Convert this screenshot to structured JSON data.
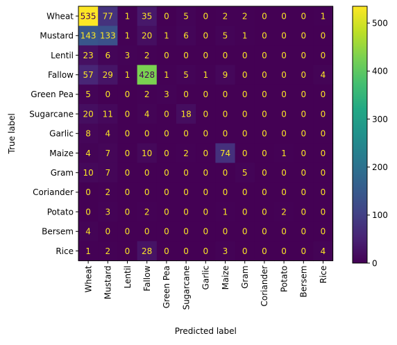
{
  "chart_data": {
    "type": "heatmap",
    "title": "",
    "xlabel": "Predicted label",
    "ylabel": "True label",
    "categories": [
      "Wheat",
      "Mustard",
      "Lentil",
      "Fallow",
      "Green Pea",
      "Sugarcane",
      "Garlic",
      "Maize",
      "Gram",
      "Coriander",
      "Potato",
      "Bersem",
      "Rice"
    ],
    "matrix": [
      [
        535,
        77,
        1,
        35,
        0,
        5,
        0,
        2,
        2,
        0,
        0,
        0,
        1
      ],
      [
        143,
        133,
        1,
        20,
        1,
        6,
        0,
        5,
        1,
        0,
        0,
        0,
        0
      ],
      [
        23,
        6,
        3,
        2,
        0,
        0,
        0,
        0,
        0,
        0,
        0,
        0,
        0
      ],
      [
        57,
        29,
        1,
        428,
        1,
        5,
        1,
        9,
        0,
        0,
        0,
        0,
        4
      ],
      [
        5,
        0,
        0,
        2,
        3,
        0,
        0,
        0,
        0,
        0,
        0,
        0,
        0
      ],
      [
        20,
        11,
        0,
        4,
        0,
        18,
        0,
        0,
        0,
        0,
        0,
        0,
        0
      ],
      [
        8,
        4,
        0,
        0,
        0,
        0,
        0,
        0,
        0,
        0,
        0,
        0,
        0
      ],
      [
        4,
        7,
        0,
        10,
        0,
        2,
        0,
        74,
        0,
        0,
        1,
        0,
        0
      ],
      [
        10,
        7,
        0,
        0,
        0,
        0,
        0,
        0,
        5,
        0,
        0,
        0,
        0
      ],
      [
        0,
        2,
        0,
        0,
        0,
        0,
        0,
        0,
        0,
        0,
        0,
        0,
        0
      ],
      [
        0,
        3,
        0,
        2,
        0,
        0,
        0,
        1,
        0,
        0,
        2,
        0,
        0
      ],
      [
        4,
        0,
        0,
        0,
        0,
        0,
        0,
        0,
        0,
        0,
        0,
        0,
        0
      ],
      [
        1,
        2,
        0,
        28,
        0,
        0,
        0,
        3,
        0,
        0,
        0,
        0,
        4
      ]
    ],
    "colormap": "viridis",
    "vmin": 0,
    "vmax": 535,
    "colorbar_ticks": [
      0,
      100,
      200,
      300,
      400,
      500
    ],
    "grid": false,
    "colors": {
      "light_text": "#fde725",
      "dark_text": "#440154"
    }
  }
}
